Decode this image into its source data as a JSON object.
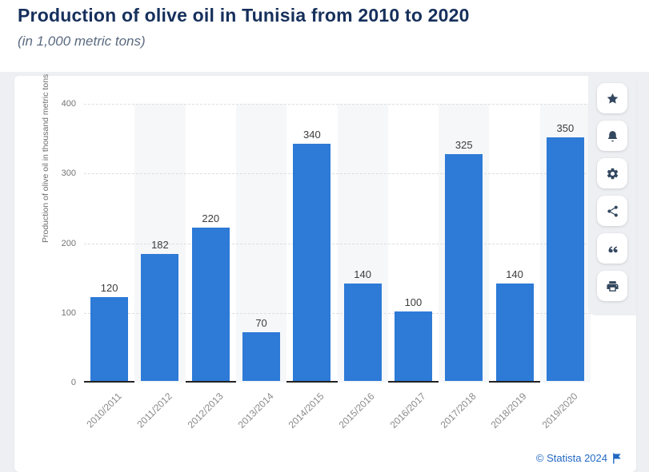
{
  "header": {
    "title": "Production of olive oil in Tunisia from 2010 to 2020",
    "subtitle": "(in 1,000 metric tons)"
  },
  "toolbar": {
    "icons": [
      "favorite-star",
      "notification-bell",
      "settings-gear",
      "share",
      "citation-quote",
      "print"
    ]
  },
  "footer": {
    "copyright": "© Statista 2024",
    "flag_icon": "statista-flag"
  },
  "chart_data": {
    "type": "bar",
    "title": "Production of olive oil in Tunisia from 2010 to 2020",
    "subtitle": "(in 1,000 metric tons)",
    "categories": [
      "2010/2011",
      "2011/2012",
      "2012/2013",
      "2013/2014",
      "2014/2015",
      "2015/2016",
      "2016/2017",
      "2017/2018",
      "2018/2019",
      "2019/2020"
    ],
    "values": [
      120,
      182,
      220,
      70,
      340,
      140,
      100,
      325,
      140,
      350
    ],
    "xlabel": "",
    "ylabel": "Production of olive oil in thousand metric tons",
    "ylim": [
      0,
      400
    ],
    "yticks": [
      0,
      100,
      200,
      300,
      400
    ],
    "legend": false,
    "grid": "horizontal-dashed",
    "plot_bands": "alternating-columns",
    "bar_color": "#2d7ad7",
    "band_color": "#f6f7f9",
    "accent_link_color": "#2368c4"
  }
}
